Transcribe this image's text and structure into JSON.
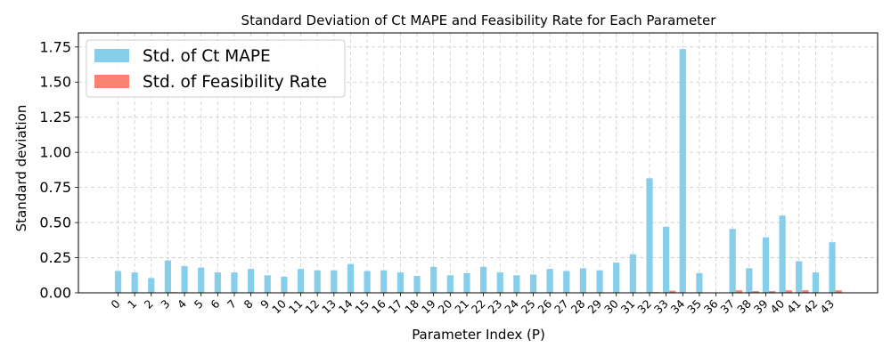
{
  "chart_data": {
    "type": "bar",
    "title": "Standard Deviation of Ct MAPE and Feasibility Rate for Each Parameter",
    "xlabel": "Parameter Index (P)",
    "ylabel": "Standard deviation",
    "ylim": [
      0,
      1.85
    ],
    "yticks": [
      "0.00",
      "0.25",
      "0.50",
      "0.75",
      "1.00",
      "1.25",
      "1.50",
      "1.75"
    ],
    "grid": true,
    "legend_position": "top-left",
    "categories": [
      "0",
      "1",
      "2",
      "3",
      "4",
      "5",
      "6",
      "7",
      "8",
      "9",
      "10",
      "11",
      "12",
      "13",
      "14",
      "15",
      "16",
      "17",
      "18",
      "19",
      "20",
      "21",
      "22",
      "23",
      "24",
      "25",
      "26",
      "27",
      "28",
      "29",
      "30",
      "31",
      "32",
      "33",
      "34",
      "35",
      "36",
      "37",
      "38",
      "39",
      "40",
      "41",
      "42",
      "43"
    ],
    "series": [
      {
        "name": "Std. of Ct MAPE",
        "color": "#87ceeb",
        "values": [
          0.155,
          0.145,
          0.105,
          0.23,
          0.19,
          0.18,
          0.145,
          0.145,
          0.17,
          0.125,
          0.115,
          0.17,
          0.16,
          0.16,
          0.205,
          0.155,
          0.16,
          0.145,
          0.12,
          0.185,
          0.125,
          0.14,
          0.185,
          0.145,
          0.125,
          0.13,
          0.17,
          0.155,
          0.175,
          0.16,
          0.215,
          0.275,
          0.815,
          0.47,
          1.735,
          0.14,
          0.0,
          0.455,
          0.175,
          0.395,
          0.55,
          0.225,
          0.145,
          0.36
        ]
      },
      {
        "name": "Std. of Feasibility Rate",
        "color": "#fa8072",
        "values": [
          0,
          0,
          0,
          0.005,
          0,
          0,
          0,
          0,
          0,
          0,
          0,
          0,
          0,
          0,
          0,
          0,
          0,
          0,
          0,
          0,
          0,
          0,
          0,
          0,
          0,
          0,
          0,
          0,
          0,
          0,
          0,
          0,
          0.005,
          0.015,
          0,
          0,
          0,
          0.018,
          0.012,
          0.012,
          0.018,
          0.018,
          0,
          0.018
        ]
      }
    ]
  }
}
